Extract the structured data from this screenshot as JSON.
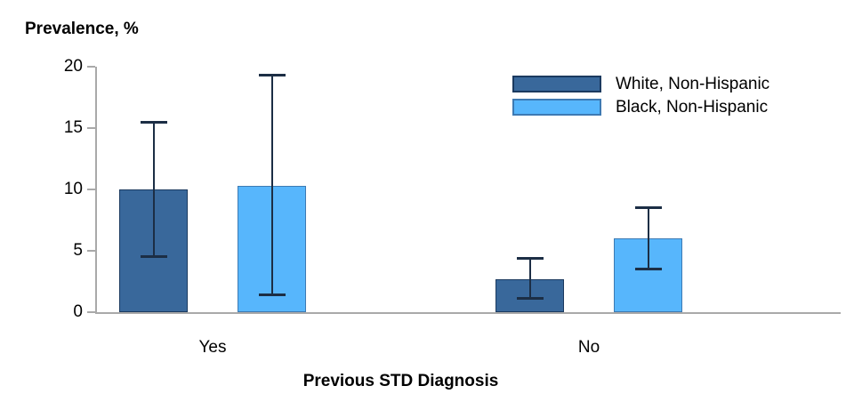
{
  "chart_data": {
    "type": "bar",
    "title": "Prevalence, %",
    "xlabel": "Previous STD Diagnosis",
    "ylabel": "Prevalence, %",
    "categories": [
      "Yes",
      "No"
    ],
    "series": [
      {
        "name": "White, Non-Hispanic",
        "values": [
          10.0,
          2.7
        ],
        "ci_low": [
          4.4,
          1.0
        ],
        "ci_high": [
          15.6,
          4.5
        ],
        "color": "#39689B",
        "border_color": "#1B3A5F"
      },
      {
        "name": "Black, Non-Hispanic",
        "values": [
          10.3,
          6.0
        ],
        "ci_low": [
          1.3,
          3.4
        ],
        "ci_high": [
          19.4,
          8.6
        ],
        "color": "#57B6FC",
        "border_color": "#3D7AB3"
      }
    ],
    "ylim": [
      0,
      20
    ],
    "yticks": [
      0,
      5,
      10,
      15,
      20
    ],
    "grid": false,
    "legend_position": "top-right",
    "error_bar_color": "#1C2E45",
    "axis_color": "#A9A9A9",
    "text_color": "#000000"
  }
}
